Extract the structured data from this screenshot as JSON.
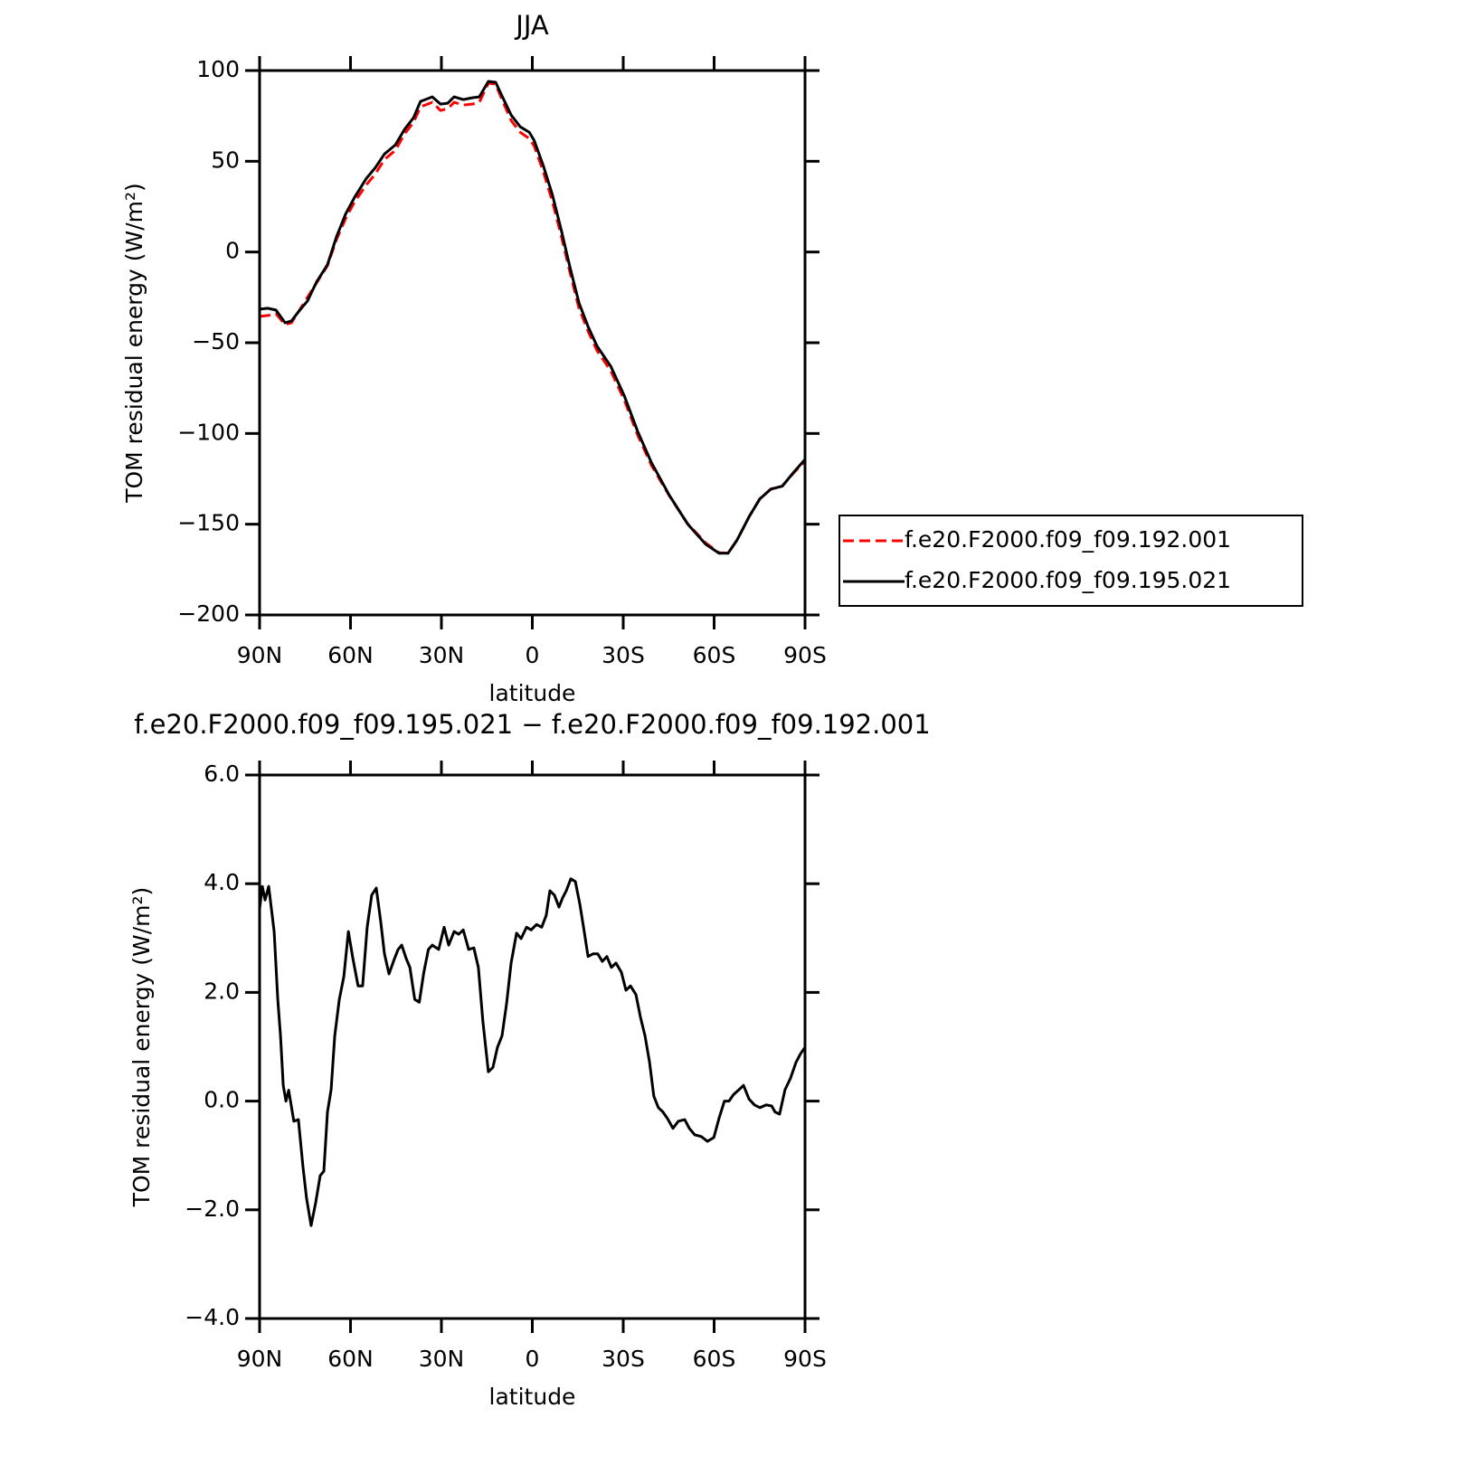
{
  "chart_data": [
    {
      "type": "line",
      "title": "JJA",
      "xlabel": "latitude",
      "ylabel": "TOM residual energy (W/m²)",
      "xlim": [
        90,
        -90
      ],
      "xticks": [
        {
          "value": 90,
          "label": "90N"
        },
        {
          "value": 60,
          "label": "60N"
        },
        {
          "value": 30,
          "label": "30N"
        },
        0,
        {
          "value": -30,
          "label": "30S"
        },
        {
          "value": -60,
          "label": "60S"
        },
        {
          "value": -90,
          "label": "90S"
        }
      ],
      "ylim": [
        -200,
        100
      ],
      "yticks": [
        100,
        50,
        0,
        {
          "value": -50,
          "label": "−50"
        },
        {
          "value": -100,
          "label": "−100"
        },
        {
          "value": -150,
          "label": "−150"
        },
        {
          "value": -200,
          "label": "−200"
        }
      ],
      "legend": "right",
      "x": [
        90,
        87.3,
        84.6,
        81.6,
        79.5,
        77.2,
        74.2,
        71.2,
        67.6,
        64.6,
        61.6,
        58.7,
        54.8,
        51.8,
        48.8,
        45.2,
        42.2,
        39.2,
        36.9,
        33,
        30.3,
        27.9,
        25.8,
        22.8,
        19.8,
        17.5,
        14.5,
        12.1,
        10,
        7,
        4,
        1,
        -0.6,
        -3.6,
        -6.6,
        -9.6,
        -12.4,
        -15.4,
        -18.5,
        -21.4,
        -25.9,
        -30.3,
        -34.8,
        -39.3,
        -45.2,
        -51.3,
        -57.2,
        -61.6,
        -64.6,
        -67.6,
        -71.5,
        -75.1,
        -78.7,
        -82.5,
        -86.1,
        -90
      ],
      "series": [
        {
          "name": "f.e20.F2000.f09_f09.192.001",
          "color": "#ff0000",
          "style": "dashed",
          "values": [
            -35.5,
            -35,
            -34,
            -40,
            -39,
            -33,
            -25,
            -17,
            -7.5,
            7,
            18.5,
            27.5,
            37,
            43,
            51,
            56,
            65,
            71.5,
            80,
            82.5,
            78,
            79,
            82.5,
            81,
            81.5,
            82.5,
            93,
            92.5,
            84,
            72.5,
            66,
            62.5,
            58.5,
            44.5,
            28,
            8.5,
            -11,
            -31,
            -44,
            -54.5,
            -65.5,
            -81.3,
            -101,
            -117.5,
            -134.3,
            -149.8,
            -160.3,
            -165.7,
            -166,
            -158.7,
            -146,
            -136,
            -130.6,
            -129,
            -122,
            -115.3
          ]
        },
        {
          "name": "f.e20.F2000.f09_f09.195.021",
          "color": "#000000",
          "style": "solid",
          "values": [
            -31.5,
            -31,
            -32,
            -39,
            -38,
            -33,
            -27,
            -16.5,
            -7,
            8.5,
            21,
            30,
            40.5,
            46.5,
            54,
            59,
            67.5,
            74,
            83,
            85.5,
            81.5,
            82,
            85.5,
            84,
            85,
            85.5,
            94,
            93.5,
            86,
            75.5,
            69,
            66,
            61.5,
            47.7,
            31.7,
            11.8,
            -8.2,
            -28,
            -41.5,
            -52,
            -63,
            -79,
            -99,
            -116,
            -134,
            -150,
            -161,
            -166,
            -166,
            -158.6,
            -146,
            -136,
            -130.7,
            -129,
            -121.7,
            -114.3
          ]
        }
      ]
    },
    {
      "type": "line",
      "title": "f.e20.F2000.f09_f09.195.021 − f.e20.F2000.f09_f09.192.001",
      "xlabel": "latitude",
      "ylabel": "TOM residual energy (W/m²)",
      "xlim": [
        90,
        -90
      ],
      "xticks": [
        {
          "value": 90,
          "label": "90N"
        },
        {
          "value": 60,
          "label": "60N"
        },
        {
          "value": 30,
          "label": "30N"
        },
        0,
        {
          "value": -30,
          "label": "30S"
        },
        {
          "value": -60,
          "label": "60S"
        },
        {
          "value": -90,
          "label": "90S"
        }
      ],
      "ylim": [
        -4,
        6
      ],
      "yticks": [
        {
          "value": 6,
          "label": "6.0"
        },
        {
          "value": 4,
          "label": "4.0"
        },
        {
          "value": 2,
          "label": "2.0"
        },
        {
          "value": 0,
          "label": "0.0"
        },
        {
          "value": -2,
          "label": "−2.0"
        },
        {
          "value": -4,
          "label": "−4.0"
        }
      ],
      "x": [
        90,
        89.1,
        88.2,
        87,
        85.2,
        84,
        83.1,
        82.2,
        81.3,
        80.4,
        78.7,
        77.2,
        75.7,
        74.5,
        73,
        71.5,
        70,
        68.8,
        67.6,
        66.4,
        65.2,
        63.7,
        62.2,
        60.7,
        59.2,
        57.5,
        56,
        54.5,
        53,
        51.5,
        50,
        48.8,
        47.3,
        45.5,
        44.3,
        43.1,
        41.6,
        40.4,
        38.8,
        37.3,
        35.8,
        34.3,
        33,
        30.9,
        29.1,
        27.6,
        25.8,
        24.3,
        22.8,
        21,
        19.3,
        17.8,
        16.3,
        14.5,
        13,
        11.5,
        10,
        8.5,
        7,
        5.2,
        3.7,
        1.9,
        0.4,
        -1.4,
        -3.1,
        -4.6,
        -5.8,
        -7.3,
        -8.8,
        -10,
        -11.2,
        -12.7,
        -14.2,
        -15.7,
        -16.9,
        -18.4,
        -20.1,
        -21.6,
        -23.1,
        -24.6,
        -26.1,
        -27.6,
        -29.4,
        -30.9,
        -32.4,
        -34.2,
        -35.7,
        -37.2,
        -38.7,
        -40.1,
        -41.6,
        -43.1,
        -44.6,
        -46.4,
        -48.2,
        -50.3,
        -51.8,
        -53.6,
        -55.7,
        -57.8,
        -59.9,
        -61.6,
        -63.4,
        -64.9,
        -66.4,
        -68.2,
        -69.7,
        -71.5,
        -73.3,
        -75.1,
        -77.2,
        -79,
        -80.1,
        -81.6,
        -83.4,
        -85.2,
        -87,
        -88.5,
        -90
      ],
      "series": [
        {
          "color": "#000000",
          "style": "solid",
          "values": [
            3.54,
            3.95,
            3.7,
            3.95,
            3.12,
            1.87,
            1.2,
            0.29,
            0,
            0.2,
            -0.37,
            -0.34,
            -1.2,
            -1.79,
            -2.29,
            -1.87,
            -1.37,
            -1.29,
            -0.2,
            0.21,
            1.2,
            1.87,
            2.29,
            3.12,
            2.62,
            2.12,
            2.12,
            3.2,
            3.79,
            3.92,
            3.29,
            2.71,
            2.34,
            2.62,
            2.79,
            2.87,
            2.62,
            2.46,
            1.87,
            1.82,
            2.37,
            2.79,
            2.87,
            2.79,
            3.2,
            2.87,
            3.12,
            3.07,
            3.15,
            2.79,
            2.82,
            2.46,
            1.46,
            0.54,
            0.62,
            0.99,
            1.2,
            1.79,
            2.54,
            3.09,
            2.99,
            3.2,
            3.15,
            3.25,
            3.2,
            3.42,
            3.87,
            3.79,
            3.57,
            3.74,
            3.87,
            4.09,
            4.04,
            3.62,
            3.2,
            2.66,
            2.71,
            2.71,
            2.57,
            2.66,
            2.46,
            2.54,
            2.37,
            2.04,
            2.12,
            1.96,
            1.54,
            1.2,
            0.71,
            0.09,
            -0.12,
            -0.2,
            -0.32,
            -0.5,
            -0.37,
            -0.34,
            -0.5,
            -0.62,
            -0.65,
            -0.74,
            -0.67,
            -0.32,
            0,
            0,
            0.12,
            0.21,
            0.29,
            0.04,
            -0.07,
            -0.12,
            -0.07,
            -0.09,
            -0.2,
            -0.24,
            0.21,
            0.42,
            0.71,
            0.87,
            0.99
          ]
        }
      ]
    }
  ]
}
